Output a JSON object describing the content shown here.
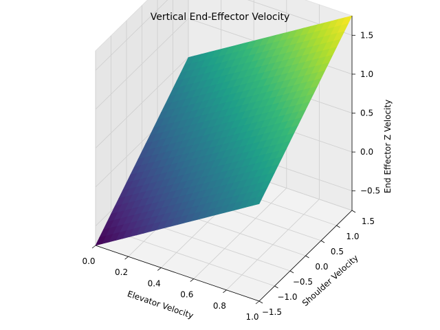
{
  "chart_data": {
    "type": "surface",
    "title": "Vertical End-Effector Velocity",
    "xlabel": "Elevator Velocity",
    "ylabel": "Shoulder Velocity",
    "zlabel": "End Effector Z Velocity",
    "xlim": [
      0.0,
      1.0
    ],
    "ylim": [
      -1.5,
      1.5
    ],
    "zlim": [
      -0.75,
      1.75
    ],
    "xticks": [
      "0.0",
      "0.2",
      "0.4",
      "0.6",
      "0.8",
      "1.0"
    ],
    "yticks": [
      "−1.5",
      "−1.0",
      "−0.5",
      "0.0",
      "0.5",
      "1.0",
      "1.5"
    ],
    "zticks": [
      "−0.5",
      "0.0",
      "0.5",
      "1.0",
      "1.5"
    ],
    "surface": {
      "x_range": [
        0.0,
        1.0
      ],
      "y_range": [
        -1.5,
        1.5
      ],
      "corners": [
        {
          "x": 0.0,
          "y": -1.5,
          "z": -0.75
        },
        {
          "x": 1.0,
          "y": -1.5,
          "z": 0.5
        },
        {
          "x": 0.0,
          "y": 1.5,
          "z": 0.5
        },
        {
          "x": 1.0,
          "y": 1.5,
          "z": 1.75
        }
      ]
    },
    "colormap": "viridis",
    "colors": {
      "low": "#440154",
      "mid": "#21918c",
      "high": "#fde725"
    },
    "grid": true
  }
}
